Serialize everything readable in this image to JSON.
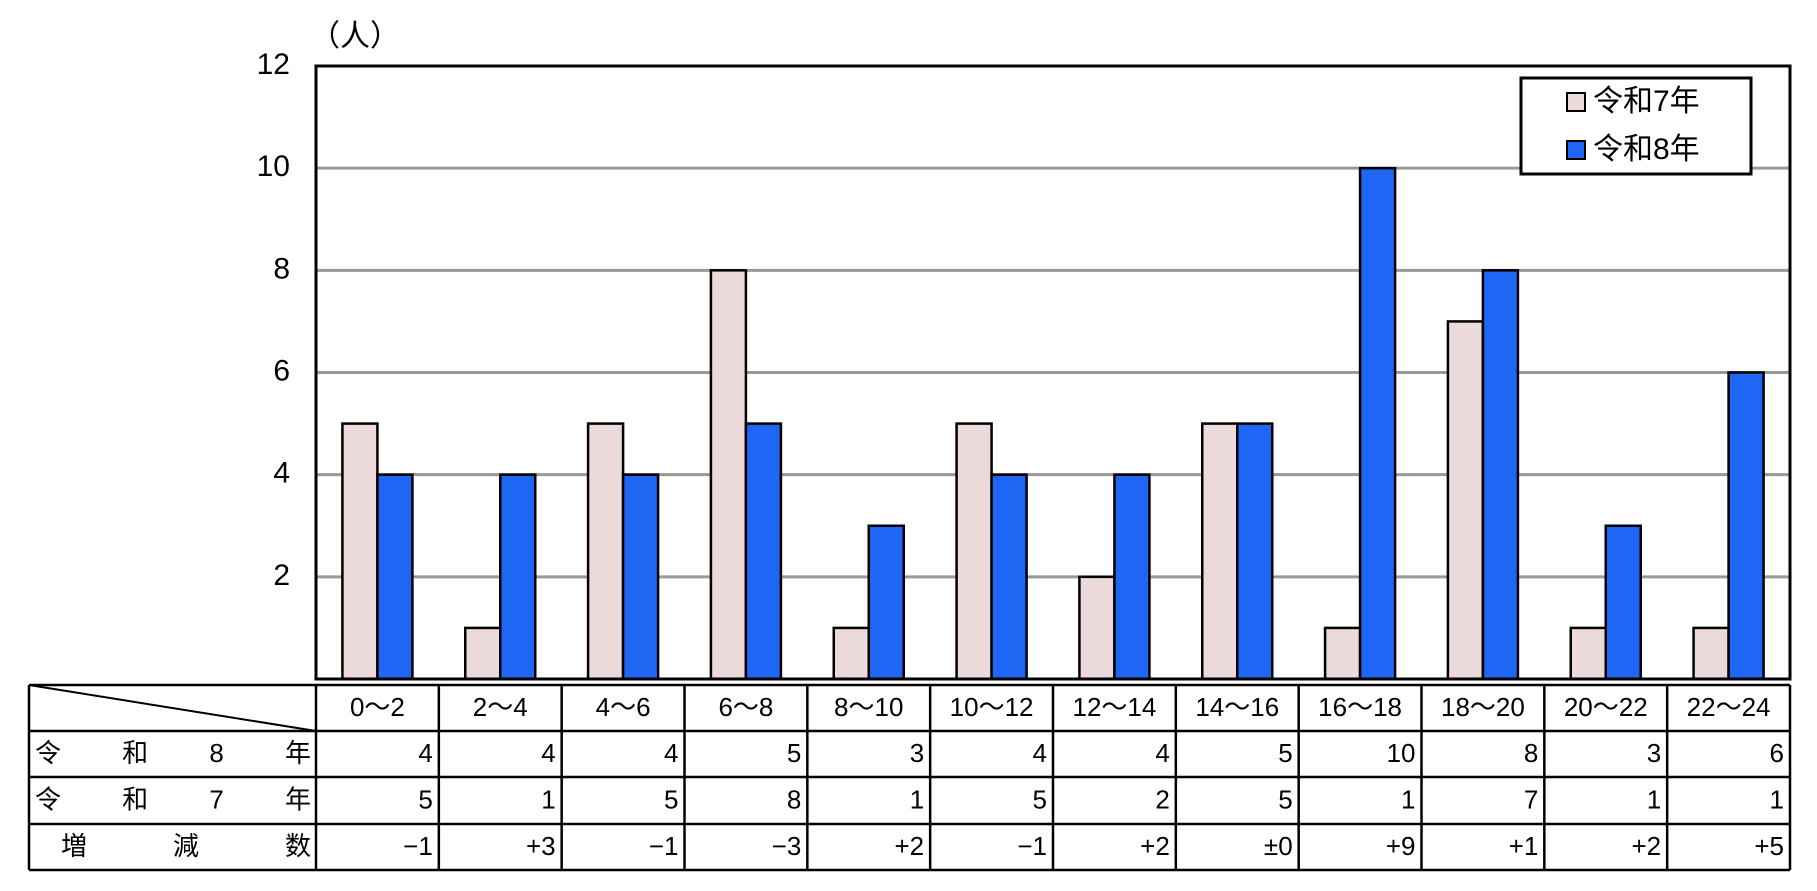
{
  "chart_data": {
    "type": "bar",
    "y_unit": "（人）",
    "categories": [
      "0～2",
      "2～4",
      "4～6",
      "6～8",
      "8～10",
      "10～12",
      "12～14",
      "14～16",
      "16～18",
      "18～20",
      "20～22",
      "22～24"
    ],
    "series": [
      {
        "name": "令和7年",
        "color": "#ecd9d9",
        "values": [
          5,
          1,
          5,
          8,
          1,
          5,
          2,
          5,
          1,
          7,
          1,
          1
        ]
      },
      {
        "name": "令和8年",
        "color": "#1f66f5",
        "values": [
          4,
          4,
          4,
          5,
          3,
          4,
          4,
          5,
          10,
          8,
          3,
          6
        ]
      }
    ],
    "ylim": [
      0,
      12
    ],
    "yticks": [
      2,
      4,
      6,
      8,
      10,
      12
    ],
    "grid": true,
    "legend": "top-right",
    "diff_label": "増減数",
    "diff_values": [
      "−1",
      "+3",
      "−1",
      "−3",
      "+2",
      "−1",
      "+2",
      "±0",
      "+9",
      "+1",
      "+2",
      "+5"
    ]
  }
}
